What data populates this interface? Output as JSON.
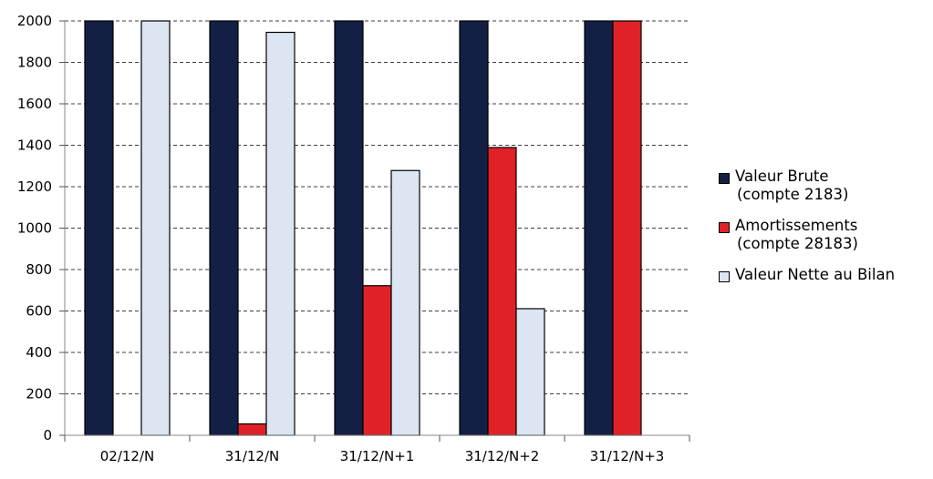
{
  "chart_data": {
    "type": "bar",
    "categories": [
      "02/12/N",
      "31/12/N",
      "31/12/N+1",
      "31/12/N+2",
      "31/12/N+3"
    ],
    "series": [
      {
        "name": "Valeur Brute",
        "name_sub": "(compte 2183)",
        "color": "#141f45",
        "values": [
          2000,
          2000,
          2000,
          2000,
          2000
        ]
      },
      {
        "name": "Amortissements",
        "name_sub": "(compte 28183)",
        "color": "#e02228",
        "values": [
          0,
          55,
          722,
          1389,
          2000
        ]
      },
      {
        "name": "Valeur Nette au Bilan",
        "name_sub": "",
        "color": "#dce6f2",
        "values": [
          2000,
          1945,
          1278,
          611,
          0
        ]
      }
    ],
    "ylim": [
      0,
      2000
    ],
    "yticks": [
      0,
      200,
      400,
      600,
      800,
      1000,
      1200,
      1400,
      1600,
      1800,
      2000
    ],
    "grid": true,
    "legend_position": "right",
    "title": "",
    "xlabel": "",
    "ylabel": ""
  }
}
